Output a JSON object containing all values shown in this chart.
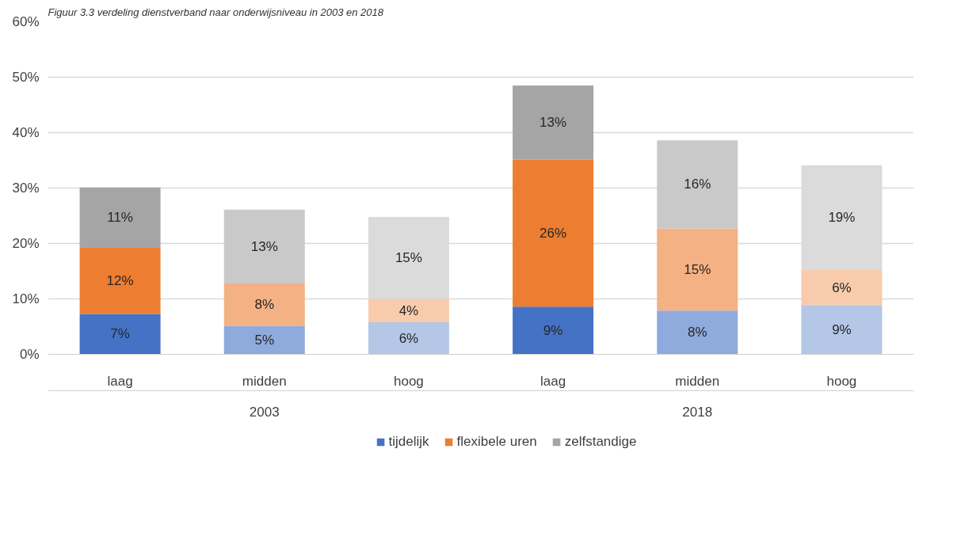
{
  "chart_data": {
    "type": "bar",
    "stacked": true,
    "title": "Figuur 3.3 verdeling dienstverband naar onderwijsniveau in 2003 en 2018",
    "categories": [
      "laag",
      "midden",
      "hoog",
      "laag",
      "midden",
      "hoog"
    ],
    "annotations": [
      "2003",
      "2018"
    ],
    "series": [
      {
        "name": "tijdelijk",
        "color": "#4472c4",
        "colors": [
          "#4472c4",
          "#8faadc",
          "#b4c7e7",
          "#4472c4",
          "#8faadc",
          "#b4c7e7"
        ],
        "values": [
          7.3,
          5.1,
          5.8,
          8.6,
          7.9,
          8.9
        ],
        "value_labels": [
          "7%",
          "5%",
          "6%",
          "9%",
          "8%",
          "9%"
        ]
      },
      {
        "name": "flexibele uren",
        "color": "#ed7d31",
        "colors": [
          "#ed7d31",
          "#f4b183",
          "#f8cbad",
          "#ed7d31",
          "#f4b183",
          "#f8cbad"
        ],
        "values": [
          11.9,
          7.7,
          4.2,
          26.5,
          14.8,
          6.3
        ],
        "value_labels": [
          "12%",
          "8%",
          "4%",
          "26%",
          "15%",
          "6%"
        ]
      },
      {
        "name": "zelfstandige",
        "color": "#a5a5a5",
        "colors": [
          "#a5a5a5",
          "#c9c9c9",
          "#dbdbdb",
          "#a5a5a5",
          "#c9c9c9",
          "#dbdbdb"
        ],
        "values": [
          10.9,
          13.3,
          14.8,
          13.4,
          15.9,
          18.9
        ],
        "value_labels": [
          "11%",
          "13%",
          "15%",
          "13%",
          "16%",
          "19%"
        ]
      }
    ],
    "ylim": [
      0,
      60
    ],
    "yticks": [
      {
        "value": 0,
        "label": "0%"
      },
      {
        "value": 10,
        "label": "10%"
      },
      {
        "value": 20,
        "label": "20%"
      },
      {
        "value": 30,
        "label": "30%"
      },
      {
        "value": 40,
        "label": "40%"
      },
      {
        "value": 50,
        "label": "50%"
      },
      {
        "value": 60,
        "label": "60%"
      }
    ],
    "grid": "y",
    "legend": "bottom"
  }
}
